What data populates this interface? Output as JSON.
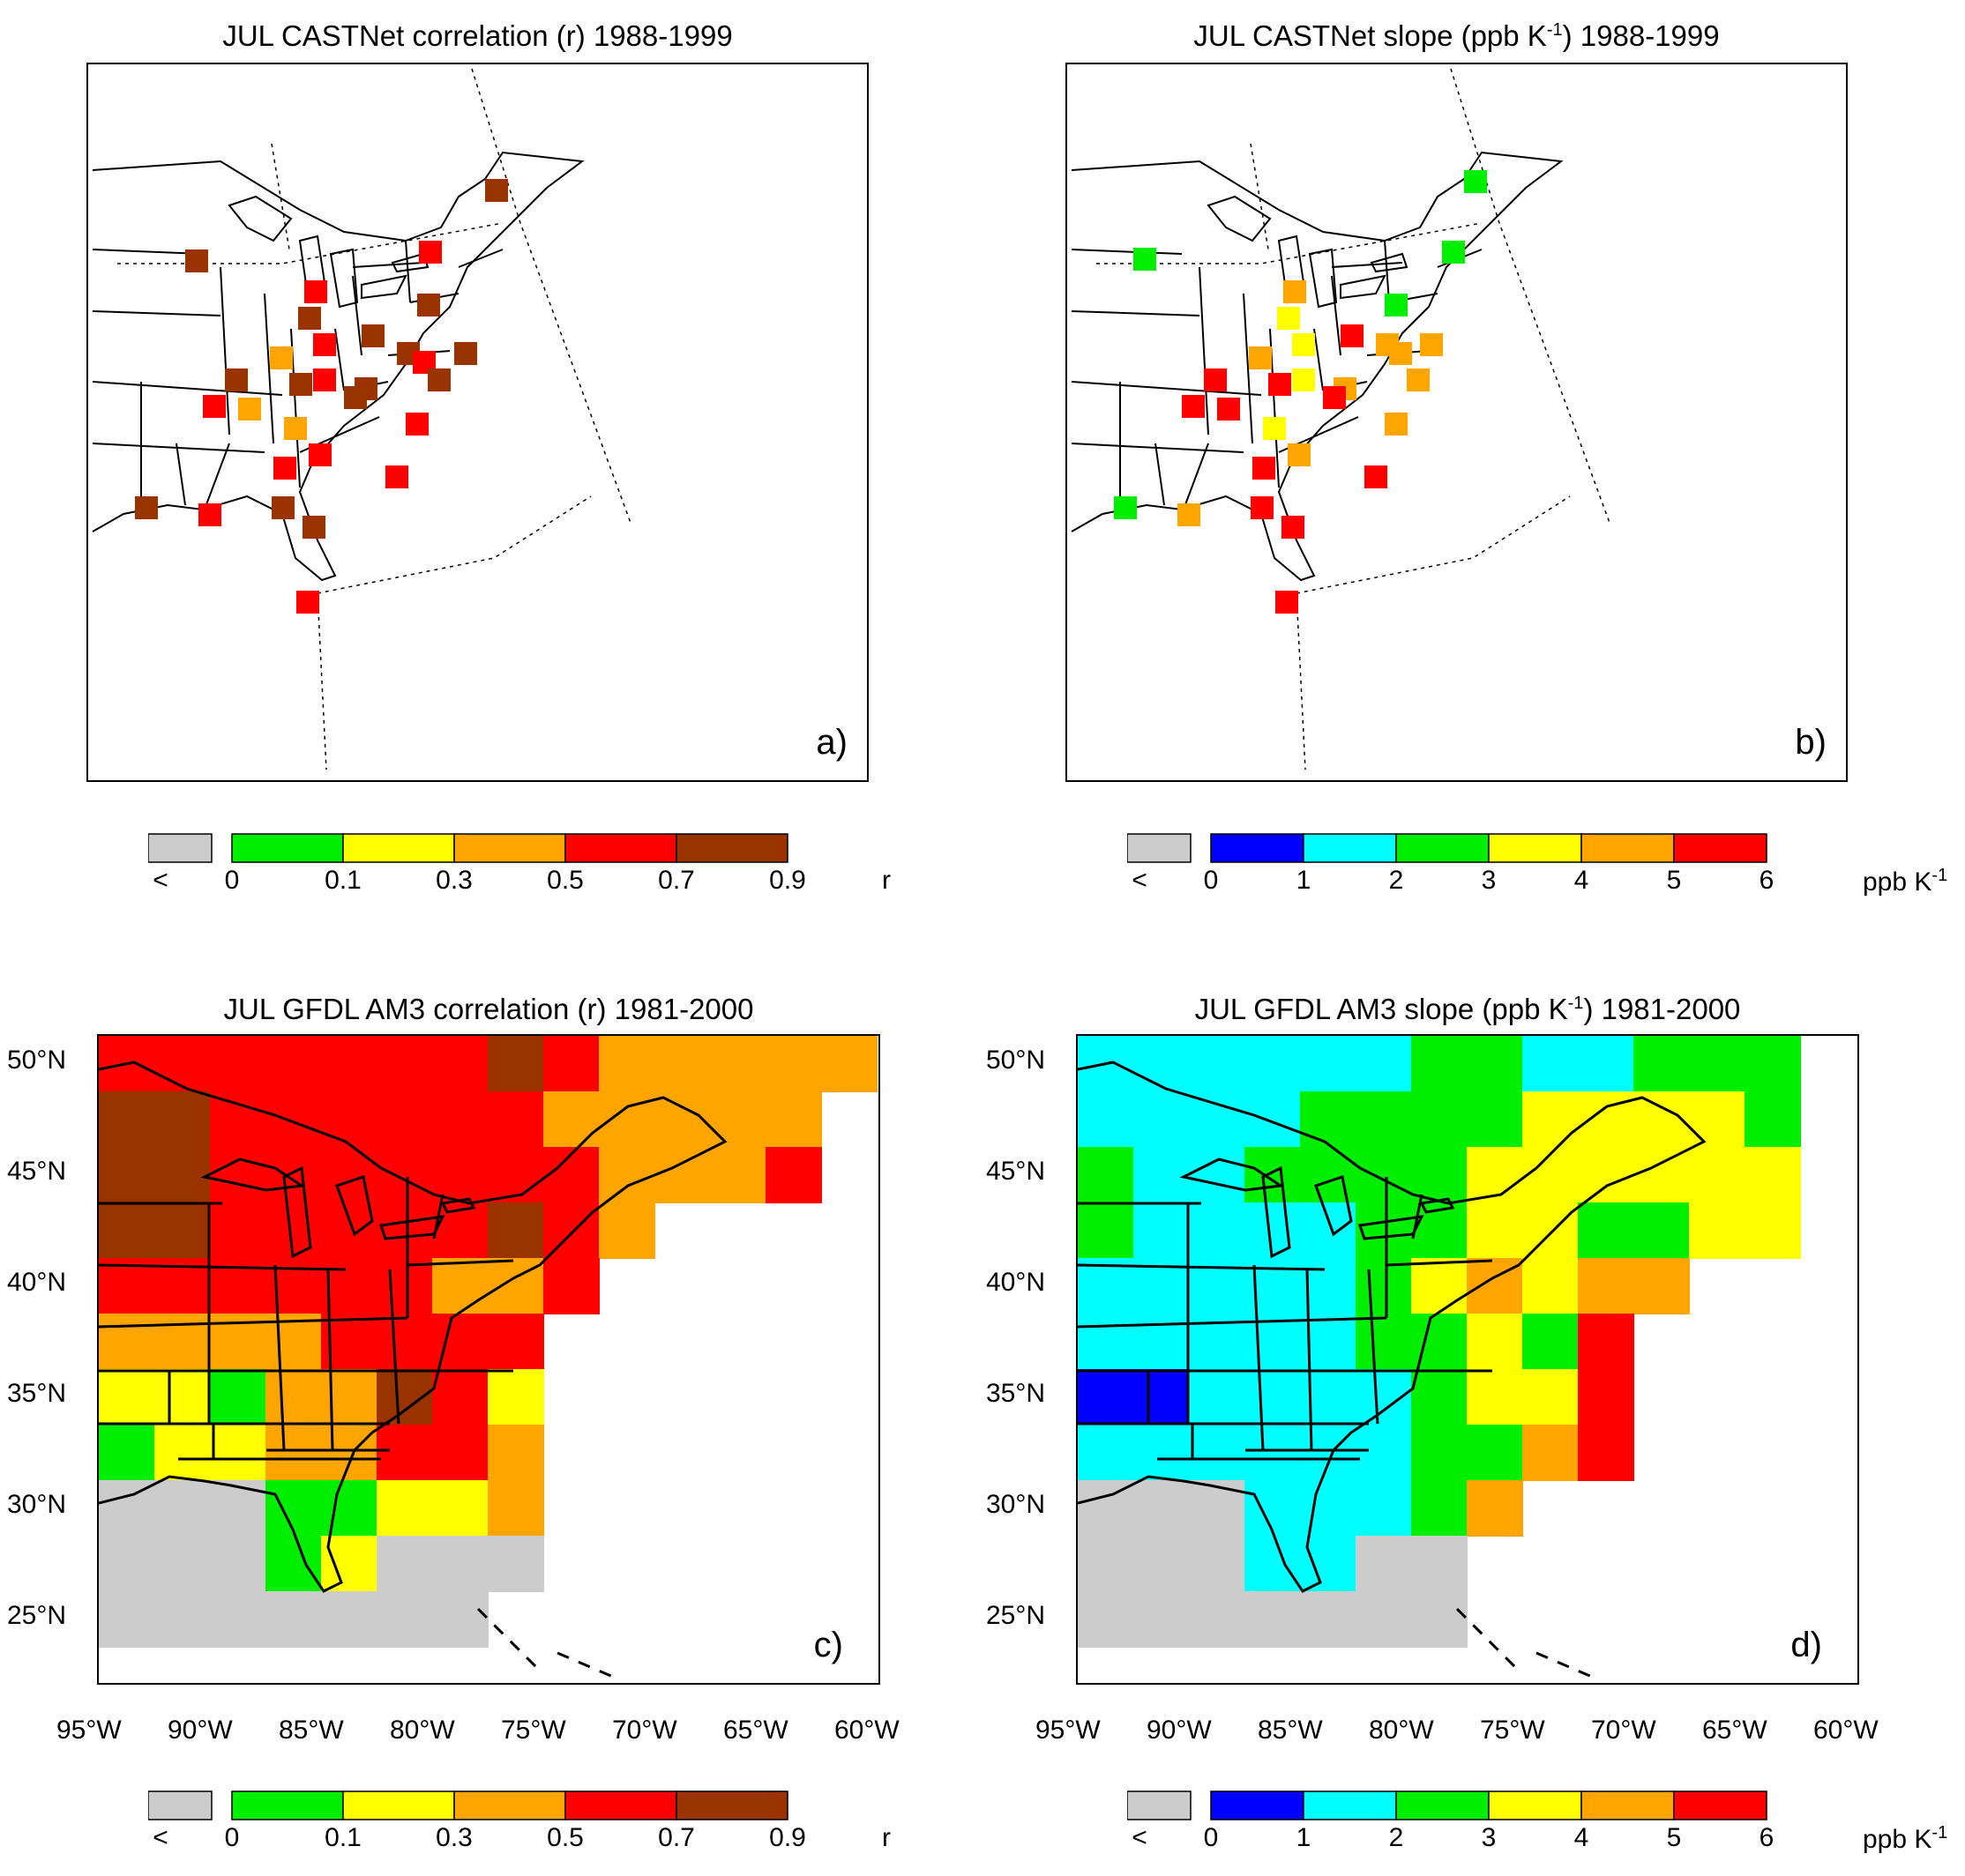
{
  "panels": {
    "a": {
      "title": "JUL CASTNet correlation (r) 1988-1999",
      "label": "a)"
    },
    "b": {
      "title_pre": "JUL CASTNet slope (ppb K",
      "title_sup": "-1",
      "title_post": ") 1988-1999",
      "label": "b)"
    },
    "c": {
      "title": "JUL GFDL AM3 correlation (r) 1981-2000",
      "label": "c)"
    },
    "d": {
      "title_pre": "JUL GFDL AM3 slope (ppb K",
      "title_sup": "-1",
      "title_post": ") 1981-2000",
      "label": "d)"
    }
  },
  "colorbar_r": {
    "less_label": "<",
    "ticks": [
      "0",
      "0.1",
      "0.3",
      "0.5",
      "0.7",
      "0.9"
    ],
    "colors": [
      "#cccccc",
      "#00ee00",
      "#ffff00",
      "#ffa500",
      "#ff0000",
      "#993300"
    ],
    "unit": "r"
  },
  "colorbar_slope": {
    "less_label": "<",
    "ticks": [
      "0",
      "1",
      "2",
      "3",
      "4",
      "5",
      "6"
    ],
    "colors": [
      "#cccccc",
      "#0000ff",
      "#00ffff",
      "#00ee00",
      "#ffff00",
      "#ffa500",
      "#ff0000"
    ],
    "unit_pre": "ppb K",
    "unit_sup": "-1"
  },
  "lat_labels": [
    "50°N",
    "45°N",
    "40°N",
    "35°N",
    "30°N",
    "25°N"
  ],
  "lon_labels": [
    "95°W",
    "90°W",
    "85°W",
    "80°W",
    "75°W",
    "70°W",
    "65°W",
    "60°W"
  ],
  "colors": {
    "gray": "#cccccc",
    "green": "#00ee00",
    "yellow": "#ffff00",
    "orange": "#ffa500",
    "red": "#ff0000",
    "brown": "#993300",
    "blue": "#0000ff",
    "cyan": "#00ffff"
  }
}
